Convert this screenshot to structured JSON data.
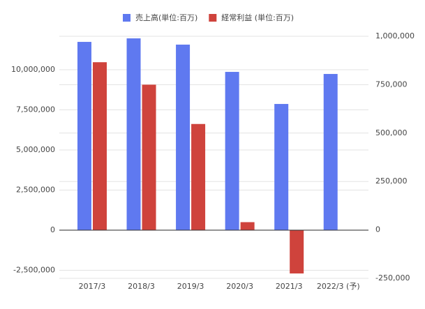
{
  "chart_data": {
    "type": "bar",
    "categories": [
      "2017/3",
      "2018/3",
      "2019/3",
      "2020/3",
      "2021/3",
      "2022/3 (予)"
    ],
    "series": [
      {
        "name": "売上高(単位:百万)",
        "color": "#5f79f0",
        "values": [
          11740000,
          11960000,
          11570000,
          9870000,
          7870000,
          9740000
        ]
      },
      {
        "name": "経常利益 (単位:百万)",
        "color": "#cf433c",
        "axis": "y2",
        "values": [
          866000,
          750000,
          547000,
          40000,
          -225000,
          null
        ]
      }
    ],
    "ylim": [
      -3000000,
      12090000
    ],
    "yticks": [
      {
        "value": -2500000,
        "label": "-2,500,000"
      },
      0,
      {
        "value": 2500000,
        "label": "2,500,000"
      },
      {
        "value": 5000000,
        "label": "5,000,000"
      },
      {
        "value": 7500000,
        "label": "7,500,000"
      },
      {
        "value": 10000000,
        "label": "10,000,000"
      }
    ],
    "y2lim": [
      -250000,
      1000000
    ],
    "y2ticks": [
      {
        "value": -250000,
        "label": "-250,000"
      },
      0,
      {
        "value": 250000,
        "label": "250,000"
      },
      {
        "value": 500000,
        "label": "500,000"
      },
      {
        "value": 750000,
        "label": "750,000"
      },
      {
        "value": 1000000,
        "label": "1,000,000"
      }
    ],
    "grid": true,
    "legend": "top"
  }
}
